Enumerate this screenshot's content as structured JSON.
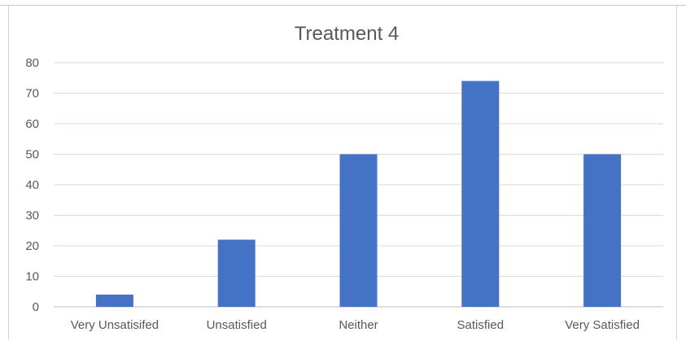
{
  "chart_data": {
    "type": "bar",
    "title": "Treatment 4",
    "categories": [
      "Very Unsatisifed",
      "Unsatisfied",
      "Neither",
      "Satisfied",
      "Very Satisfied"
    ],
    "values": [
      4,
      22,
      50,
      74,
      50
    ],
    "ylim": [
      0,
      80
    ],
    "yticks": [
      0,
      10,
      20,
      30,
      40,
      50,
      60,
      70,
      80
    ],
    "grid": true,
    "legend": "none",
    "bar_color": "#4472C4",
    "grid_color": "#d9d9d9",
    "text_color": "#595959"
  }
}
